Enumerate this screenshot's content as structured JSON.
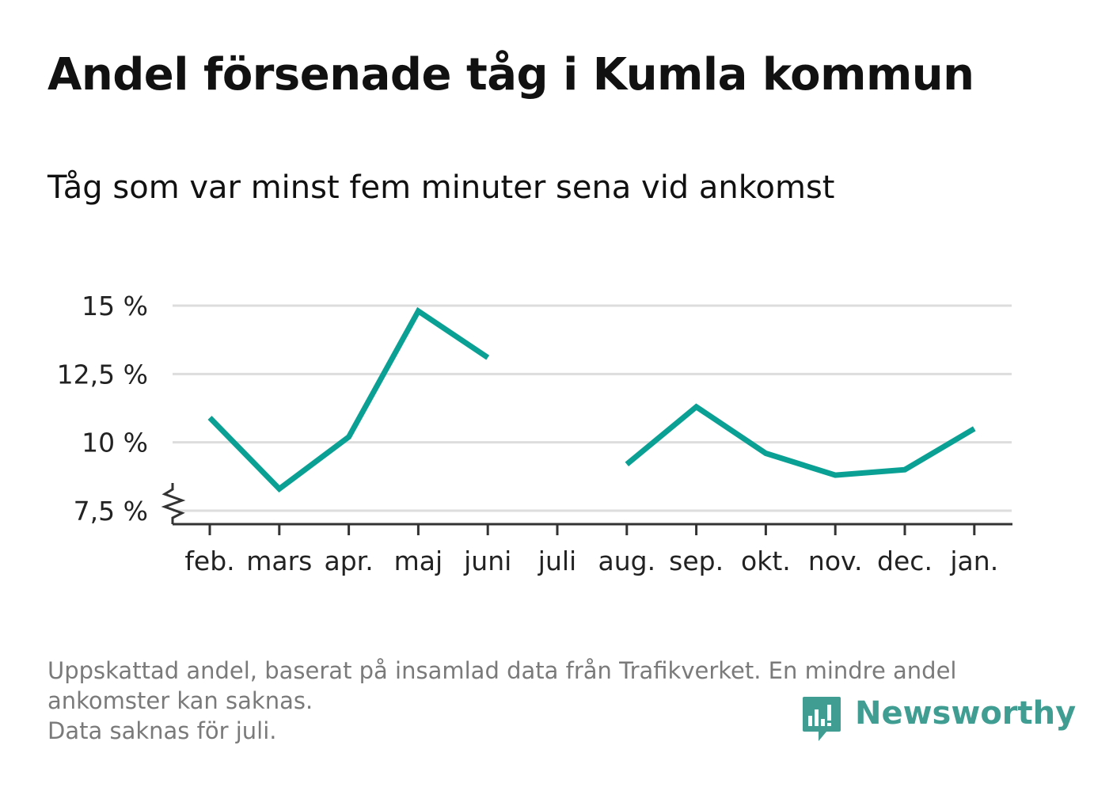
{
  "chart_data": {
    "type": "line",
    "title": "Andel försenade tåg i Kumla kommun",
    "subtitle": "Tåg som var minst fem minuter sena vid ankomst",
    "categories": [
      "feb.",
      "mars",
      "apr.",
      "maj",
      "juni",
      "juli",
      "aug.",
      "sep.",
      "okt.",
      "nov.",
      "dec.",
      "jan."
    ],
    "series": [
      {
        "values": [
          10.9,
          8.3,
          10.2,
          14.8,
          13.1,
          null,
          9.2,
          11.3,
          9.6,
          8.8,
          9.0,
          10.5
        ]
      }
    ],
    "ylim": [
      7.5,
      15
    ],
    "yticks": [
      7.5,
      10,
      12.5,
      15
    ],
    "ytick_labels": [
      "7,5 %",
      "10 %",
      "12,5 %",
      "15 %"
    ],
    "axis_break": true,
    "grid": true,
    "line_color": "#0aa094"
  },
  "footnote": {
    "line1": "Uppskattad andel, baserat på insamlad data från Trafikverket. En mindre andel",
    "line2": "ankomster kan saknas.",
    "line3": "Data saknas för juli."
  },
  "brand": {
    "name": "Newsworthy",
    "icon": "bar-chart-speech-bubble-icon",
    "color": "#3f9d92"
  }
}
